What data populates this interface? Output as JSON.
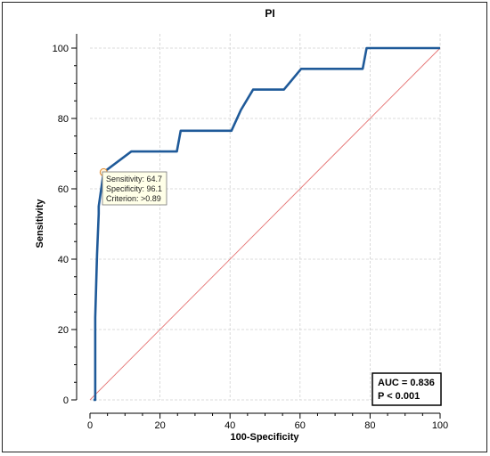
{
  "chart_data": {
    "type": "line",
    "title": "PI",
    "xlabel": "100-Specificity",
    "ylabel": "Sensitivity",
    "xlim": [
      0,
      100
    ],
    "ylim": [
      0,
      100
    ],
    "xticks": [
      "0",
      "20",
      "40",
      "60",
      "80",
      "100"
    ],
    "yticks": [
      "0",
      "20",
      "40",
      "60",
      "80",
      "100"
    ],
    "grid": true,
    "series": [
      {
        "kind": "roc-curve",
        "color": "#1f5a99",
        "x": [
          1.0,
          1.5,
          1.5,
          2.0,
          2.5,
          2.5,
          3.9,
          11.8,
          11.8,
          24.8,
          25.9,
          25.9,
          40.4,
          40.4,
          43.1,
          46.6,
          46.6,
          55.4,
          60.3,
          60.3,
          77.9,
          79.0,
          79.0,
          100
        ],
        "y": [
          0.0,
          0.0,
          23.5,
          41.2,
          52.9,
          55.0,
          64.7,
          70.6,
          70.6,
          70.6,
          76.5,
          76.5,
          76.5,
          76.5,
          82.4,
          88.2,
          88.2,
          88.2,
          94.1,
          94.1,
          94.1,
          100,
          100,
          100
        ]
      },
      {
        "kind": "reference-diagonal",
        "color": "#e57373",
        "x": [
          0,
          100
        ],
        "y": [
          0,
          100
        ]
      }
    ],
    "highlight_point": {
      "x": 3.9,
      "y": 64.7,
      "tooltip": [
        "Sensitivity: 64.7",
        "Specificity: 96.1",
        "Criterion: >0.89"
      ]
    },
    "annotation": [
      "AUC = 0.836",
      "P < 0.001"
    ]
  }
}
